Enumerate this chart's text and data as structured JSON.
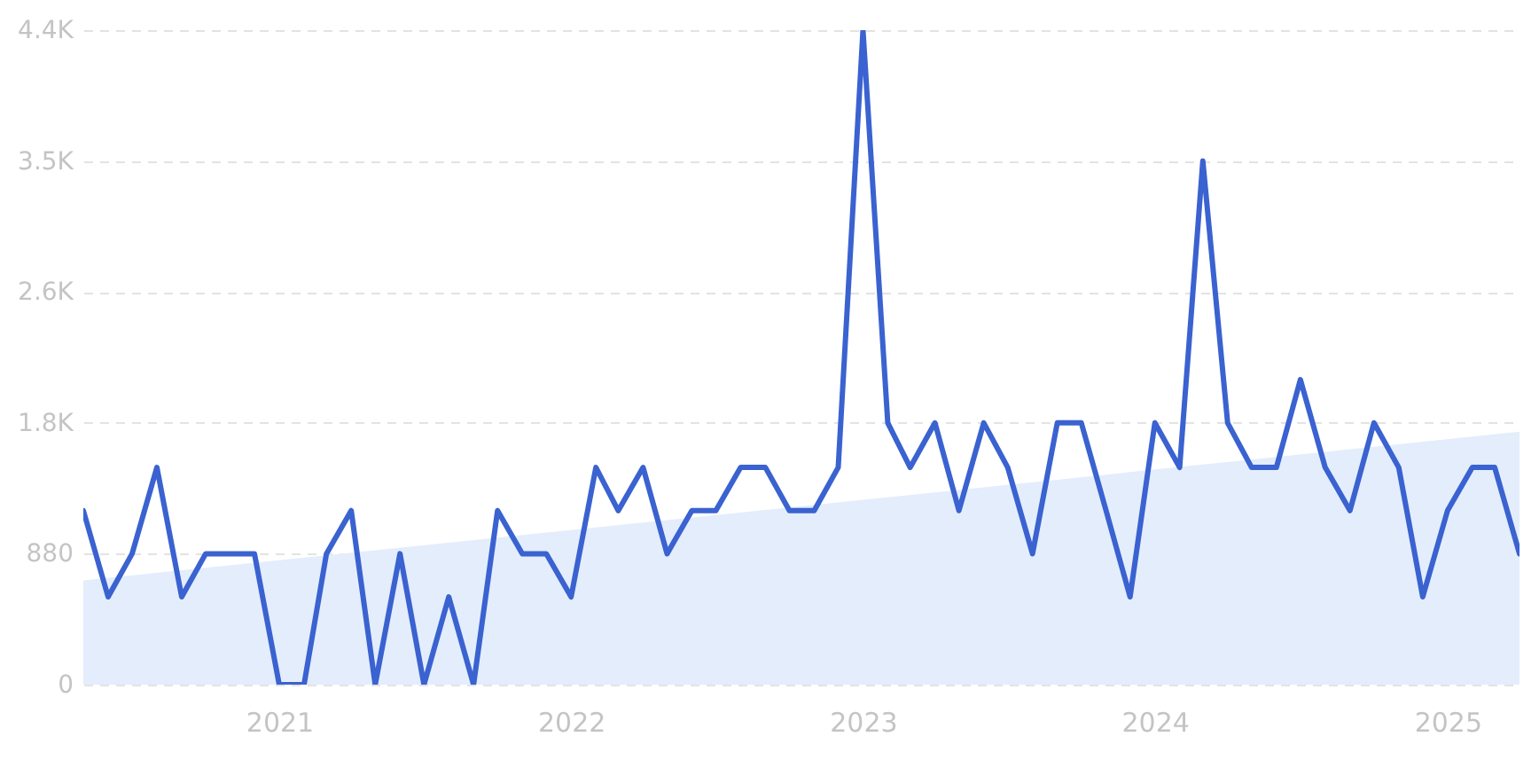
{
  "chart_data": {
    "type": "line",
    "x": [
      "2020-05",
      "2020-06",
      "2020-07",
      "2020-08",
      "2020-09",
      "2020-10",
      "2020-11",
      "2020-12",
      "2021-01",
      "2021-02",
      "2021-03",
      "2021-04",
      "2021-05",
      "2021-06",
      "2021-07",
      "2021-08",
      "2021-09",
      "2021-10",
      "2021-11",
      "2021-12",
      "2022-01",
      "2022-02",
      "2022-03",
      "2022-04",
      "2022-05",
      "2022-06",
      "2022-07",
      "2022-08",
      "2022-09",
      "2022-10",
      "2022-11",
      "2022-12",
      "2023-01",
      "2023-02",
      "2023-03",
      "2023-04",
      "2023-05",
      "2023-06",
      "2023-07",
      "2023-08",
      "2023-09",
      "2023-10",
      "2023-11",
      "2023-12",
      "2024-01",
      "2024-02",
      "2024-03",
      "2024-04",
      "2024-05",
      "2024-06",
      "2024-07",
      "2024-08",
      "2024-09",
      "2024-10",
      "2024-11",
      "2024-12",
      "2025-01",
      "2025-02",
      "2025-03",
      "2025-04"
    ],
    "series": [
      {
        "type": "area",
        "color": "#e3edfc",
        "x": [
          "2020-05",
          "2025-04"
        ],
        "values": [
          700,
          1700
        ]
      },
      {
        "color": "#3a62d0",
        "values": [
          1170,
          590,
          880,
          1460,
          590,
          880,
          880,
          880,
          0,
          0,
          880,
          1170,
          0,
          880,
          0,
          590,
          0,
          1170,
          880,
          880,
          590,
          1460,
          1170,
          1460,
          880,
          1170,
          1170,
          1460,
          1460,
          1170,
          1170,
          1460,
          4400,
          1760,
          1460,
          1760,
          1170,
          1760,
          1460,
          880,
          1760,
          1760,
          1170,
          590,
          1760,
          1460,
          3520,
          1760,
          1460,
          1460,
          2050,
          1460,
          1170,
          1760,
          1460,
          590,
          1170,
          1460,
          1460,
          880
        ]
      }
    ],
    "xlim": [
      "2020-05",
      "2025-04"
    ],
    "xticks": [
      "2021",
      "2022",
      "2023",
      "2024",
      "2025"
    ],
    "ylim": [
      0,
      4400
    ],
    "yticks": [
      0,
      880,
      {
        "value": 1760,
        "label": "1.8K"
      },
      {
        "value": 2640,
        "label": "2.6K"
      },
      {
        "value": 3520,
        "label": "3.5K"
      },
      {
        "value": 4400,
        "label": "4.4K"
      }
    ],
    "grid": "y"
  }
}
